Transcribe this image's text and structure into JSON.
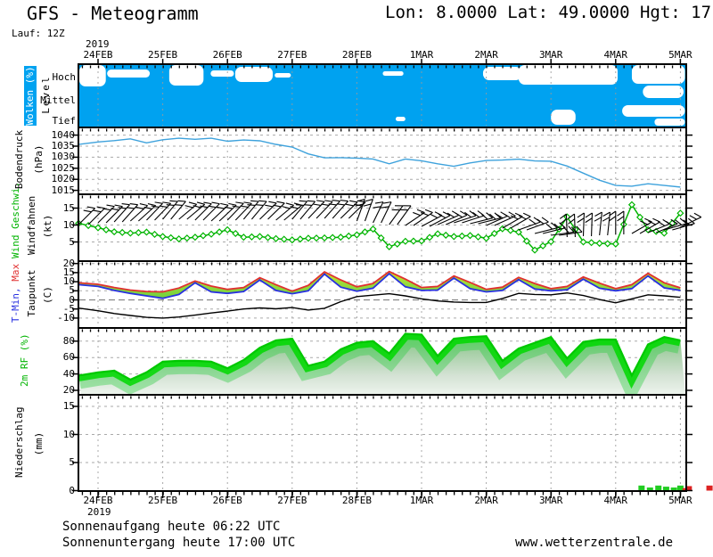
{
  "header": {
    "title": "GFS - Meteogramm",
    "location": "Lon: 8.0000 Lat: 49.0000 Hgt: 17",
    "run": "Lauf: 12Z",
    "year": "2019"
  },
  "footer": {
    "sunrise": "Sonnenaufgang heute 06:22 UTC",
    "sunset": "Sonnenuntergang heute 17:00 UTC",
    "site": "www.wetterzentrale.de",
    "year": "2019"
  },
  "colors": {
    "cloud_blue": "#00a2f0",
    "pressure_line": "#3ea2dc",
    "wind_green": "#00b400",
    "temp_max": "#e03030",
    "temp_min": "#2830e0",
    "dewpoint": "#000000",
    "rh_green": "#00c800",
    "precip_green": "#22cc22",
    "precip_red": "#dd2222",
    "grid": "#aaaaaa"
  },
  "time_axis": {
    "tick_labels": [
      "24FEB",
      "25FEB",
      "26FEB",
      "27FEB",
      "28FEB",
      "1MAR",
      "2MAR",
      "3MAR",
      "4MAR",
      "5MAR"
    ],
    "year": "2019",
    "minor_tick_hours": 3,
    "x_days": [
      -0.3,
      0,
      0.25,
      0.5,
      0.75,
      1,
      1.25,
      1.5,
      1.75,
      2,
      2.25,
      2.5,
      2.75,
      3,
      3.25,
      3.5,
      3.75,
      4,
      4.25,
      4.5,
      4.75,
      5,
      5.25,
      5.5,
      5.75,
      6,
      6.25,
      6.5,
      6.75,
      7,
      7.25,
      7.5,
      7.75,
      8,
      8.25,
      8.5,
      8.75,
      9
    ]
  },
  "chart_data": [
    {
      "type": "cloud-cover",
      "title": "Wolken (%)",
      "level_axis_label": "Level",
      "levels": [
        "Hoch",
        "Mittel",
        "Tief"
      ],
      "clear_gaps": [
        [
          -0.3,
          0.12,
          73,
          97
        ],
        [
          0.14,
          0.8,
          78,
          87
        ],
        [
          1.1,
          1.63,
          73,
          96
        ],
        [
          1.74,
          2.1,
          79,
          86
        ],
        [
          2.12,
          2.7,
          75,
          92
        ],
        [
          2.73,
          2.98,
          82,
          87
        ],
        [
          4.4,
          4.72,
          80,
          85
        ],
        [
          4.6,
          4.75,
          131,
          136
        ],
        [
          5.95,
          6.55,
          75,
          90
        ],
        [
          6.5,
          8.03,
          73,
          95
        ],
        [
          7.0,
          7.38,
          123,
          140
        ],
        [
          8.25,
          9.07,
          73,
          94
        ],
        [
          8.42,
          9.05,
          96,
          110
        ],
        [
          8.1,
          9.07,
          118,
          131
        ],
        [
          8.6,
          9.07,
          133,
          141
        ]
      ]
    },
    {
      "type": "line",
      "ylabel": "Bodendruck",
      "unit": "(hPa)",
      "yticks": [
        1040,
        1035,
        1030,
        1025,
        1020,
        1015
      ],
      "ylim": [
        1013,
        1043
      ],
      "values": [
        1035.8,
        1036.9,
        1037.5,
        1038.3,
        1036.5,
        1037.9,
        1038.6,
        1038.1,
        1038.6,
        1037.2,
        1037.8,
        1037.4,
        1035.8,
        1034.6,
        1031.5,
        1029.7,
        1029.8,
        1029.6,
        1029.2,
        1027,
        1029.2,
        1028.4,
        1027,
        1025.9,
        1027.4,
        1028.5,
        1028.7,
        1029.1,
        1028.3,
        1028.2,
        1026,
        1022.8,
        1019.6,
        1017.2,
        1016.9,
        1018,
        1017.2,
        1016.5
      ]
    },
    {
      "type": "line-barbs",
      "ylabel": "Wind Geschwi.",
      "ylabel2": "Windfahnen",
      "unit": "(kt)",
      "yticks": [
        15,
        10,
        5
      ],
      "ylim": [
        0,
        19
      ],
      "values": [
        10.5,
        9.2,
        8,
        7.6,
        7.9,
        6.6,
        5.9,
        6.4,
        7.3,
        8.6,
        6.4,
        6.6,
        6,
        5.6,
        6.1,
        6.2,
        6.4,
        7.1,
        8.8,
        3.6,
        5.2,
        5.3,
        7.4,
        6.6,
        6.9,
        6.1,
        8.9,
        7.9,
        2.6,
        5.1,
        12.4,
        5,
        4.6,
        4.4,
        16,
        8.6,
        7.6,
        13.5
      ],
      "barbs": [
        [
          45,
          252
        ],
        [
          45,
          250
        ],
        [
          48,
          249
        ],
        [
          42,
          248
        ],
        [
          46,
          247
        ],
        [
          50,
          246
        ],
        [
          40,
          246
        ],
        [
          45,
          247
        ],
        [
          43,
          248
        ],
        [
          46,
          247
        ],
        [
          50,
          246
        ],
        [
          44,
          246
        ],
        [
          40,
          247
        ],
        [
          50,
          246
        ],
        [
          46,
          245
        ],
        [
          48,
          245
        ],
        [
          44,
          245
        ],
        [
          70,
          248
        ],
        [
          64,
          250
        ],
        [
          54,
          252
        ],
        [
          34,
          253
        ],
        [
          28,
          254
        ],
        [
          24,
          252
        ],
        [
          18,
          250
        ],
        [
          14,
          251
        ],
        [
          24,
          253
        ],
        [
          30,
          256
        ],
        [
          20,
          258
        ],
        [
          14,
          262
        ],
        [
          8,
          264
        ],
        [
          92,
          266
        ],
        [
          88,
          265
        ],
        [
          84,
          264
        ],
        [
          90,
          263
        ],
        [
          30,
          262
        ],
        [
          22,
          261
        ],
        [
          16,
          258
        ],
        [
          26,
          255
        ]
      ]
    },
    {
      "type": "band-line",
      "ylabel_min": "T-Min,",
      "ylabel_max": "Max",
      "ylabel2": "Taupunkt",
      "unit": "(C)",
      "yticks": [
        20,
        15,
        10,
        5,
        0,
        -5,
        -10
      ],
      "ylim": [
        -15,
        21
      ],
      "tmax": [
        9.4,
        8.6,
        6.8,
        5.4,
        4.6,
        4.4,
        6.5,
        10.4,
        7.6,
        5.8,
        6.8,
        12.2,
        8.4,
        4.8,
        8,
        15.4,
        11,
        7.2,
        9,
        15.6,
        11.4,
        6.8,
        7.4,
        13.2,
        9.6,
        5.8,
        7,
        12.4,
        9,
        6.2,
        7.4,
        12.6,
        9.2,
        6.2,
        8.4,
        14.6,
        9.4,
        6.6
      ],
      "tmin": [
        8.4,
        7.4,
        5.2,
        3.6,
        2.2,
        0.9,
        3,
        9.4,
        4.4,
        3.6,
        4.6,
        11,
        5.2,
        3.4,
        5,
        14.2,
        7,
        4.8,
        6.4,
        14.4,
        7.2,
        5.2,
        5.4,
        12,
        6.2,
        4.4,
        5.2,
        11.2,
        6,
        5,
        5.6,
        11.4,
        6.4,
        5,
        6.2,
        13.2,
        6.6,
        5.2
      ],
      "dewpoint": [
        -4.5,
        -6,
        -7.5,
        -8.6,
        -9.6,
        -10,
        -9.4,
        -8.4,
        -7.2,
        -6.2,
        -5,
        -4.4,
        -4.9,
        -4.2,
        -5.6,
        -4.6,
        -1,
        1.8,
        2.6,
        3.4,
        2.2,
        0.6,
        -0.6,
        -1.2,
        -1.4,
        -1.4,
        0.8,
        3.6,
        3,
        2.8,
        3.8,
        2.4,
        0.2,
        -1.6,
        0.6,
        2.8,
        2.2,
        1.4
      ]
    },
    {
      "type": "area",
      "ylabel": "2m RF (%)",
      "yticks": [
        80,
        60,
        40,
        20
      ],
      "ylim": [
        15,
        96
      ],
      "values": [
        38,
        42,
        44,
        33,
        42,
        55,
        56,
        56,
        55,
        47,
        57,
        72,
        81,
        83,
        50,
        55,
        70,
        78,
        80,
        65,
        89,
        88,
        62,
        83,
        85,
        86,
        56,
        71,
        78,
        85,
        59,
        79,
        82,
        82,
        38,
        76,
        85,
        81
      ]
    },
    {
      "type": "bar",
      "ylabel": "Niederschlag",
      "unit": "(mm)",
      "yticks": [
        15,
        10,
        5,
        0
      ],
      "ylim": [
        0,
        17
      ],
      "bars": [
        [
          8.4,
          0.9,
          "green"
        ],
        [
          8.53,
          0.55,
          "green"
        ],
        [
          8.66,
          0.9,
          "green"
        ],
        [
          8.78,
          0.7,
          "green"
        ],
        [
          8.9,
          0.55,
          "green"
        ],
        [
          9,
          0.9,
          "green"
        ],
        [
          9.08,
          0.45,
          "red"
        ],
        [
          9.13,
          0.8,
          "red"
        ],
        [
          9.45,
          0.9,
          "red"
        ]
      ]
    }
  ]
}
